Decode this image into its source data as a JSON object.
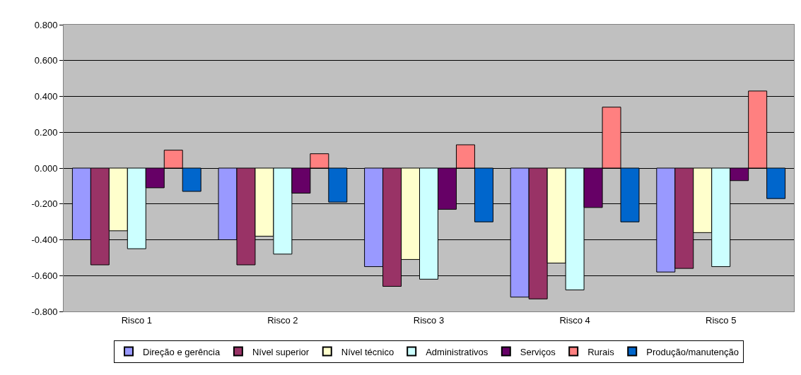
{
  "chart_data": {
    "type": "bar",
    "categories": [
      "Risco 1",
      "Risco 2",
      "Risco 3",
      "Risco 4",
      "Risco 5"
    ],
    "series": [
      {
        "name": "Direção e gerência",
        "color": "#9999ff",
        "values": [
          -0.4,
          -0.4,
          -0.55,
          -0.72,
          -0.58
        ]
      },
      {
        "name": "Nível superior",
        "color": "#993366",
        "values": [
          -0.54,
          -0.54,
          -0.66,
          -0.73,
          -0.56
        ]
      },
      {
        "name": "Nível técnico",
        "color": "#ffffcc",
        "values": [
          -0.35,
          -0.38,
          -0.51,
          -0.53,
          -0.36
        ]
      },
      {
        "name": "Administrativos",
        "color": "#ccffff",
        "values": [
          -0.45,
          -0.48,
          -0.62,
          -0.68,
          -0.55
        ]
      },
      {
        "name": "Serviços",
        "color": "#660066",
        "values": [
          -0.11,
          -0.14,
          -0.23,
          -0.22,
          -0.07
        ]
      },
      {
        "name": "Rurais",
        "color": "#ff8080",
        "values": [
          0.1,
          0.08,
          0.13,
          0.34,
          0.43
        ]
      },
      {
        "name": "Produção/manutenção",
        "color": "#0066cc",
        "values": [
          -0.13,
          -0.19,
          -0.3,
          -0.3,
          -0.17
        ]
      }
    ],
    "ylim": [
      -0.8,
      0.8
    ],
    "yticks": [
      {
        "value": -0.8,
        "label": "-0.800"
      },
      {
        "value": -0.6,
        "label": "-0.600"
      },
      {
        "value": -0.4,
        "label": "-0.400"
      },
      {
        "value": -0.2,
        "label": "-0.200"
      },
      {
        "value": 0,
        "label": "0.000"
      },
      {
        "value": 0.2,
        "label": "0.200"
      },
      {
        "value": 0.4,
        "label": "0.400"
      },
      {
        "value": 0.6,
        "label": "0.600"
      },
      {
        "value": 0.8,
        "label": "0.800"
      }
    ],
    "grid": "y",
    "legend": "bottom"
  }
}
